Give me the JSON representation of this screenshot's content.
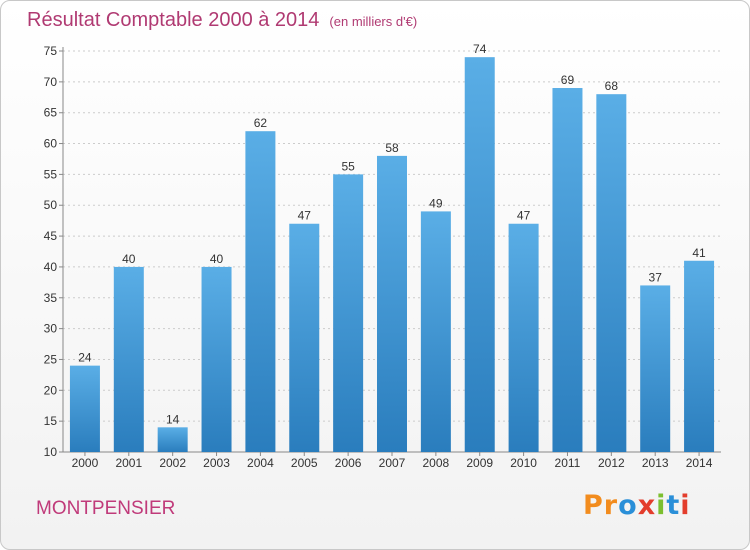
{
  "header": {
    "title": "Résultat Comptable 2000 à 2014",
    "unit": "(en milliers d'€)"
  },
  "footer": {
    "city": "MONTPENSIER",
    "logo_text": "Proxiti"
  },
  "colors": {
    "title": "#b03a72",
    "bar_top": "#5aaee6",
    "bar_bottom": "#2a7dbd",
    "grid": "#cccccc",
    "logo": [
      "#f28c1e",
      "#f28c1e",
      "#2a8fd8",
      "#e33d2c",
      "#7cbf2f",
      "#2a8fd8",
      "#e33d2c"
    ]
  },
  "chart_data": {
    "type": "bar",
    "title": "Résultat Comptable 2000 à 2014",
    "subtitle": "(en milliers d'€)",
    "xlabel": "",
    "ylabel": "",
    "categories": [
      "2000",
      "2001",
      "2002",
      "2003",
      "2004",
      "2005",
      "2006",
      "2007",
      "2008",
      "2009",
      "2010",
      "2011",
      "2012",
      "2013",
      "2014"
    ],
    "values": [
      24,
      40,
      14,
      40,
      62,
      47,
      55,
      58,
      49,
      74,
      47,
      69,
      68,
      37,
      41
    ],
    "ylim": [
      10,
      75
    ],
    "yticks": [
      10,
      15,
      20,
      25,
      30,
      35,
      40,
      45,
      50,
      55,
      60,
      65,
      70,
      75
    ],
    "grid": true,
    "data_labels": true
  }
}
